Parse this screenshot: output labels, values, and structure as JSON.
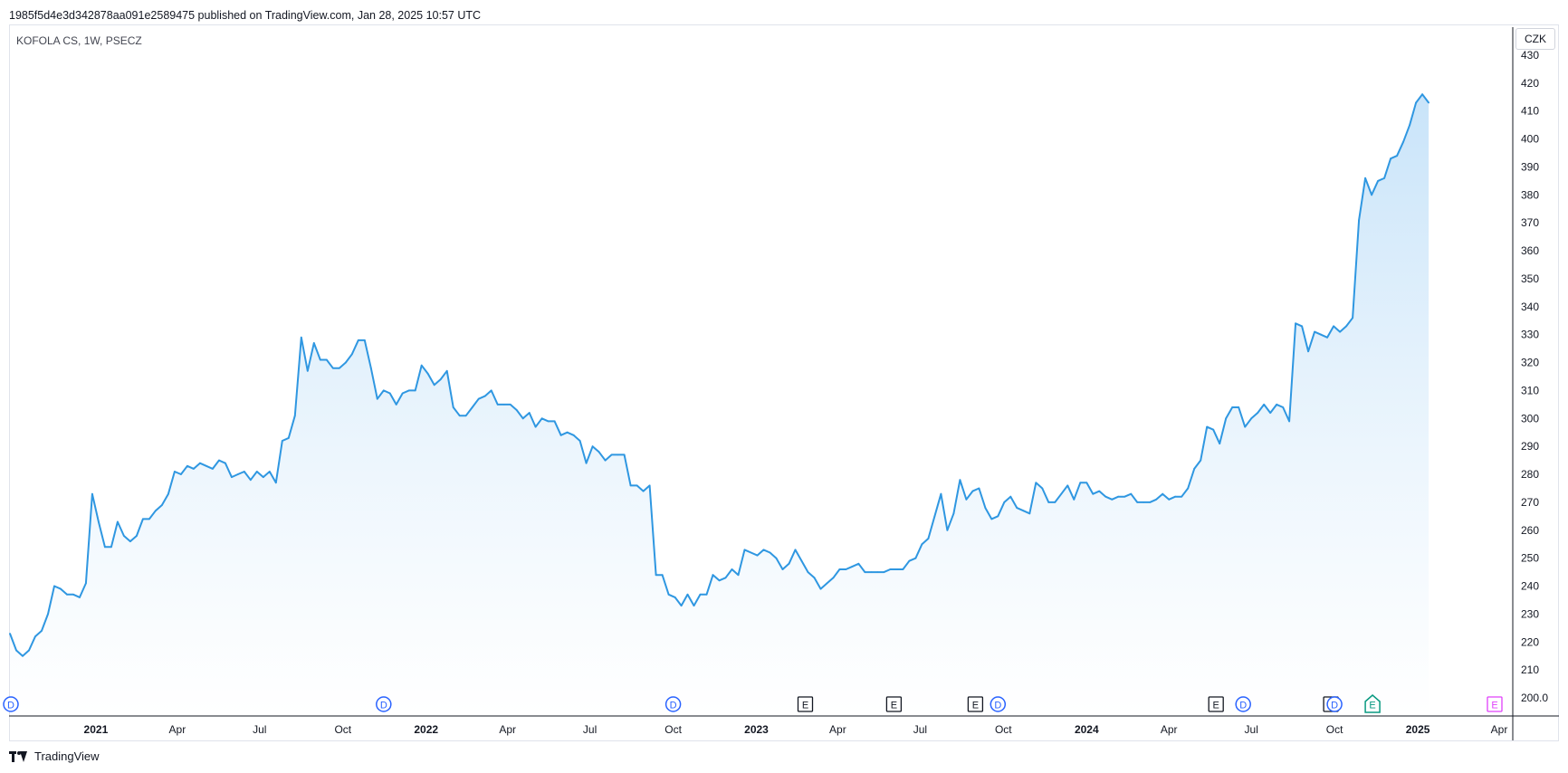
{
  "header": {
    "published_text": "1985f5d4e3d342878aa091e2589475 published on TradingView.com, Jan 28, 2025 10:57 UTC"
  },
  "chart_header": {
    "symbol_text": "KOFOLA CS, 1W, PSECZ",
    "currency": "CZK"
  },
  "footer": {
    "brand": "TradingView",
    "logo_icon": "tradingview-logo-icon"
  },
  "colors": {
    "line": "#2f97e1",
    "fill_top": "#bfdff8",
    "fill_bottom": "#ffffff",
    "axis": "#131722",
    "dividend": "#2962ff",
    "earnings": "#131722",
    "earnings_future": "#089981",
    "split": "#e040fb"
  },
  "chart_data": {
    "type": "area",
    "title": "KOFOLA CS, 1W, PSECZ",
    "x_label_unit": "week",
    "ylim": [
      200,
      430
    ],
    "y_ticks": [
      "430",
      "420",
      "410",
      "400",
      "390",
      "380",
      "370",
      "360",
      "350",
      "340",
      "330",
      "320",
      "310",
      "300",
      "290",
      "280",
      "270",
      "260",
      "250",
      "240",
      "230",
      "220",
      "210",
      "200.0"
    ],
    "x_ticks": [
      {
        "label": "2021",
        "date": "2021-01-01",
        "bold": true
      },
      {
        "label": "Apr",
        "date": "2021-04-01",
        "bold": false
      },
      {
        "label": "Jul",
        "date": "2021-07-01",
        "bold": false
      },
      {
        "label": "Oct",
        "date": "2021-10-01",
        "bold": false
      },
      {
        "label": "2022",
        "date": "2022-01-01",
        "bold": true
      },
      {
        "label": "Apr",
        "date": "2022-04-01",
        "bold": false
      },
      {
        "label": "Jul",
        "date": "2022-07-01",
        "bold": false
      },
      {
        "label": "Oct",
        "date": "2022-10-01",
        "bold": false
      },
      {
        "label": "2023",
        "date": "2023-01-01",
        "bold": true
      },
      {
        "label": "Apr",
        "date": "2023-04-01",
        "bold": false
      },
      {
        "label": "Jul",
        "date": "2023-07-01",
        "bold": false
      },
      {
        "label": "Oct",
        "date": "2023-10-01",
        "bold": false
      },
      {
        "label": "2024",
        "date": "2024-01-01",
        "bold": true
      },
      {
        "label": "Apr",
        "date": "2024-04-01",
        "bold": false
      },
      {
        "label": "Jul",
        "date": "2024-07-01",
        "bold": false
      },
      {
        "label": "Oct",
        "date": "2024-10-01",
        "bold": false
      },
      {
        "label": "2025",
        "date": "2025-01-01",
        "bold": true
      },
      {
        "label": "Apr",
        "date": "2025-04-01",
        "bold": false
      }
    ],
    "x_range": [
      "2020-09-27",
      "2025-04-15"
    ],
    "series": [
      {
        "points": [
          [
            "2020-09-28",
            223
          ],
          [
            "2020-10-05",
            217
          ],
          [
            "2020-10-12",
            215
          ],
          [
            "2020-10-19",
            217
          ],
          [
            "2020-10-26",
            222
          ],
          [
            "2020-11-02",
            224
          ],
          [
            "2020-11-09",
            230
          ],
          [
            "2020-11-16",
            240
          ],
          [
            "2020-11-23",
            239
          ],
          [
            "2020-11-30",
            237
          ],
          [
            "2020-12-07",
            237
          ],
          [
            "2020-12-14",
            236
          ],
          [
            "2020-12-21",
            241
          ],
          [
            "2020-12-28",
            273
          ],
          [
            "2021-01-04",
            263
          ],
          [
            "2021-01-11",
            254
          ],
          [
            "2021-01-18",
            254
          ],
          [
            "2021-01-25",
            263
          ],
          [
            "2021-02-01",
            258
          ],
          [
            "2021-02-08",
            256
          ],
          [
            "2021-02-15",
            258
          ],
          [
            "2021-02-22",
            264
          ],
          [
            "2021-03-01",
            264
          ],
          [
            "2021-03-08",
            267
          ],
          [
            "2021-03-15",
            269
          ],
          [
            "2021-03-22",
            273
          ],
          [
            "2021-03-29",
            281
          ],
          [
            "2021-04-05",
            280
          ],
          [
            "2021-04-12",
            283
          ],
          [
            "2021-04-19",
            282
          ],
          [
            "2021-04-26",
            284
          ],
          [
            "2021-05-03",
            283
          ],
          [
            "2021-05-10",
            282
          ],
          [
            "2021-05-17",
            285
          ],
          [
            "2021-05-24",
            284
          ],
          [
            "2021-05-31",
            279
          ],
          [
            "2021-06-07",
            280
          ],
          [
            "2021-06-14",
            281
          ],
          [
            "2021-06-21",
            278
          ],
          [
            "2021-06-28",
            281
          ],
          [
            "2021-07-05",
            279
          ],
          [
            "2021-07-12",
            281
          ],
          [
            "2021-07-19",
            277
          ],
          [
            "2021-07-26",
            292
          ],
          [
            "2021-08-02",
            293
          ],
          [
            "2021-08-09",
            301
          ],
          [
            "2021-08-16",
            329
          ],
          [
            "2021-08-23",
            317
          ],
          [
            "2021-08-30",
            327
          ],
          [
            "2021-09-06",
            321
          ],
          [
            "2021-09-13",
            321
          ],
          [
            "2021-09-20",
            318
          ],
          [
            "2021-09-27",
            318
          ],
          [
            "2021-10-04",
            320
          ],
          [
            "2021-10-11",
            323
          ],
          [
            "2021-10-18",
            328
          ],
          [
            "2021-10-25",
            328
          ],
          [
            "2021-11-01",
            318
          ],
          [
            "2021-11-08",
            307
          ],
          [
            "2021-11-15",
            310
          ],
          [
            "2021-11-22",
            309
          ],
          [
            "2021-11-29",
            305
          ],
          [
            "2021-12-06",
            309
          ],
          [
            "2021-12-13",
            310
          ],
          [
            "2021-12-20",
            310
          ],
          [
            "2021-12-27",
            319
          ],
          [
            "2022-01-03",
            316
          ],
          [
            "2022-01-10",
            312
          ],
          [
            "2022-01-17",
            314
          ],
          [
            "2022-01-24",
            317
          ],
          [
            "2022-01-31",
            304
          ],
          [
            "2022-02-07",
            301
          ],
          [
            "2022-02-14",
            301
          ],
          [
            "2022-02-21",
            304
          ],
          [
            "2022-02-28",
            307
          ],
          [
            "2022-03-07",
            308
          ],
          [
            "2022-03-14",
            310
          ],
          [
            "2022-03-21",
            305
          ],
          [
            "2022-03-28",
            305
          ],
          [
            "2022-04-04",
            305
          ],
          [
            "2022-04-11",
            303
          ],
          [
            "2022-04-18",
            300
          ],
          [
            "2022-04-25",
            302
          ],
          [
            "2022-05-02",
            297
          ],
          [
            "2022-05-09",
            300
          ],
          [
            "2022-05-16",
            299
          ],
          [
            "2022-05-23",
            299
          ],
          [
            "2022-05-30",
            294
          ],
          [
            "2022-06-06",
            295
          ],
          [
            "2022-06-13",
            294
          ],
          [
            "2022-06-20",
            292
          ],
          [
            "2022-06-27",
            284
          ],
          [
            "2022-07-04",
            290
          ],
          [
            "2022-07-11",
            288
          ],
          [
            "2022-07-18",
            285
          ],
          [
            "2022-07-25",
            287
          ],
          [
            "2022-08-01",
            287
          ],
          [
            "2022-08-08",
            287
          ],
          [
            "2022-08-15",
            276
          ],
          [
            "2022-08-22",
            276
          ],
          [
            "2022-08-29",
            274
          ],
          [
            "2022-09-05",
            276
          ],
          [
            "2022-09-12",
            244
          ],
          [
            "2022-09-19",
            244
          ],
          [
            "2022-09-26",
            237
          ],
          [
            "2022-10-03",
            236
          ],
          [
            "2022-10-10",
            233
          ],
          [
            "2022-10-17",
            237
          ],
          [
            "2022-10-24",
            233
          ],
          [
            "2022-10-31",
            237
          ],
          [
            "2022-11-07",
            237
          ],
          [
            "2022-11-14",
            244
          ],
          [
            "2022-11-21",
            242
          ],
          [
            "2022-11-28",
            243
          ],
          [
            "2022-12-05",
            246
          ],
          [
            "2022-12-12",
            244
          ],
          [
            "2022-12-19",
            253
          ],
          [
            "2022-12-26",
            252
          ],
          [
            "2023-01-02",
            251
          ],
          [
            "2023-01-09",
            253
          ],
          [
            "2023-01-16",
            252
          ],
          [
            "2023-01-23",
            250
          ],
          [
            "2023-01-30",
            246
          ],
          [
            "2023-02-06",
            248
          ],
          [
            "2023-02-13",
            253
          ],
          [
            "2023-02-20",
            249
          ],
          [
            "2023-02-27",
            245
          ],
          [
            "2023-03-06",
            243
          ],
          [
            "2023-03-13",
            239
          ],
          [
            "2023-03-20",
            241
          ],
          [
            "2023-03-27",
            243
          ],
          [
            "2023-04-03",
            246
          ],
          [
            "2023-04-10",
            246
          ],
          [
            "2023-04-17",
            247
          ],
          [
            "2023-04-24",
            248
          ],
          [
            "2023-05-01",
            245
          ],
          [
            "2023-05-08",
            245
          ],
          [
            "2023-05-15",
            245
          ],
          [
            "2023-05-22",
            245
          ],
          [
            "2023-05-29",
            246
          ],
          [
            "2023-06-05",
            246
          ],
          [
            "2023-06-12",
            246
          ],
          [
            "2023-06-19",
            249
          ],
          [
            "2023-06-26",
            250
          ],
          [
            "2023-07-03",
            255
          ],
          [
            "2023-07-10",
            257
          ],
          [
            "2023-07-17",
            265
          ],
          [
            "2023-07-24",
            273
          ],
          [
            "2023-07-31",
            260
          ],
          [
            "2023-08-07",
            266
          ],
          [
            "2023-08-14",
            278
          ],
          [
            "2023-08-21",
            271
          ],
          [
            "2023-08-28",
            274
          ],
          [
            "2023-09-04",
            275
          ],
          [
            "2023-09-11",
            268
          ],
          [
            "2023-09-18",
            264
          ],
          [
            "2023-09-25",
            265
          ],
          [
            "2023-10-02",
            270
          ],
          [
            "2023-10-09",
            272
          ],
          [
            "2023-10-16",
            268
          ],
          [
            "2023-10-23",
            267
          ],
          [
            "2023-10-30",
            266
          ],
          [
            "2023-11-06",
            277
          ],
          [
            "2023-11-13",
            275
          ],
          [
            "2023-11-20",
            270
          ],
          [
            "2023-11-27",
            270
          ],
          [
            "2023-12-04",
            273
          ],
          [
            "2023-12-11",
            276
          ],
          [
            "2023-12-18",
            271
          ],
          [
            "2023-12-25",
            277
          ],
          [
            "2024-01-01",
            277
          ],
          [
            "2024-01-08",
            273
          ],
          [
            "2024-01-15",
            274
          ],
          [
            "2024-01-22",
            272
          ],
          [
            "2024-01-29",
            271
          ],
          [
            "2024-02-05",
            272
          ],
          [
            "2024-02-12",
            272
          ],
          [
            "2024-02-19",
            273
          ],
          [
            "2024-02-26",
            270
          ],
          [
            "2024-03-04",
            270
          ],
          [
            "2024-03-11",
            270
          ],
          [
            "2024-03-18",
            271
          ],
          [
            "2024-03-25",
            273
          ],
          [
            "2024-04-01",
            271
          ],
          [
            "2024-04-08",
            272
          ],
          [
            "2024-04-15",
            272
          ],
          [
            "2024-04-22",
            275
          ],
          [
            "2024-04-29",
            282
          ],
          [
            "2024-05-06",
            285
          ],
          [
            "2024-05-13",
            297
          ],
          [
            "2024-05-20",
            296
          ],
          [
            "2024-05-27",
            291
          ],
          [
            "2024-06-03",
            300
          ],
          [
            "2024-06-10",
            304
          ],
          [
            "2024-06-17",
            304
          ],
          [
            "2024-06-24",
            297
          ],
          [
            "2024-07-01",
            300
          ],
          [
            "2024-07-08",
            302
          ],
          [
            "2024-07-15",
            305
          ],
          [
            "2024-07-22",
            302
          ],
          [
            "2024-07-29",
            305
          ],
          [
            "2024-08-05",
            304
          ],
          [
            "2024-08-12",
            299
          ],
          [
            "2024-08-19",
            334
          ],
          [
            "2024-08-26",
            333
          ],
          [
            "2024-09-02",
            324
          ],
          [
            "2024-09-09",
            331
          ],
          [
            "2024-09-16",
            330
          ],
          [
            "2024-09-23",
            329
          ],
          [
            "2024-09-30",
            333
          ],
          [
            "2024-10-07",
            331
          ],
          [
            "2024-10-14",
            333
          ],
          [
            "2024-10-21",
            336
          ],
          [
            "2024-10-28",
            371
          ],
          [
            "2024-11-04",
            386
          ],
          [
            "2024-11-11",
            380
          ],
          [
            "2024-11-18",
            385
          ],
          [
            "2024-11-25",
            386
          ],
          [
            "2024-12-02",
            393
          ],
          [
            "2024-12-09",
            394
          ],
          [
            "2024-12-16",
            399
          ],
          [
            "2024-12-23",
            405
          ],
          [
            "2024-12-30",
            413
          ],
          [
            "2025-01-06",
            416
          ],
          [
            "2025-01-13",
            413
          ]
        ]
      }
    ],
    "events": [
      {
        "kind": "dividend",
        "letter": "D",
        "date": "2020-09-29"
      },
      {
        "kind": "dividend",
        "letter": "D",
        "date": "2021-11-15"
      },
      {
        "kind": "dividend",
        "letter": "D",
        "date": "2022-10-01"
      },
      {
        "kind": "earnings",
        "letter": "E",
        "date": "2023-02-24"
      },
      {
        "kind": "earnings",
        "letter": "E",
        "date": "2023-06-02"
      },
      {
        "kind": "earnings",
        "letter": "E",
        "date": "2023-08-31"
      },
      {
        "kind": "dividend",
        "letter": "D",
        "date": "2023-09-25"
      },
      {
        "kind": "earnings",
        "letter": "E",
        "date": "2024-05-23"
      },
      {
        "kind": "dividend",
        "letter": "D",
        "date": "2024-06-22"
      },
      {
        "kind": "earnings",
        "letter": "E",
        "date": "2024-09-27"
      },
      {
        "kind": "dividend",
        "letter": "D",
        "date": "2024-10-01"
      },
      {
        "kind": "earnings-future",
        "letter": "E",
        "date": "2024-11-12"
      },
      {
        "kind": "split",
        "letter": "E",
        "date": "2025-03-27"
      }
    ]
  }
}
